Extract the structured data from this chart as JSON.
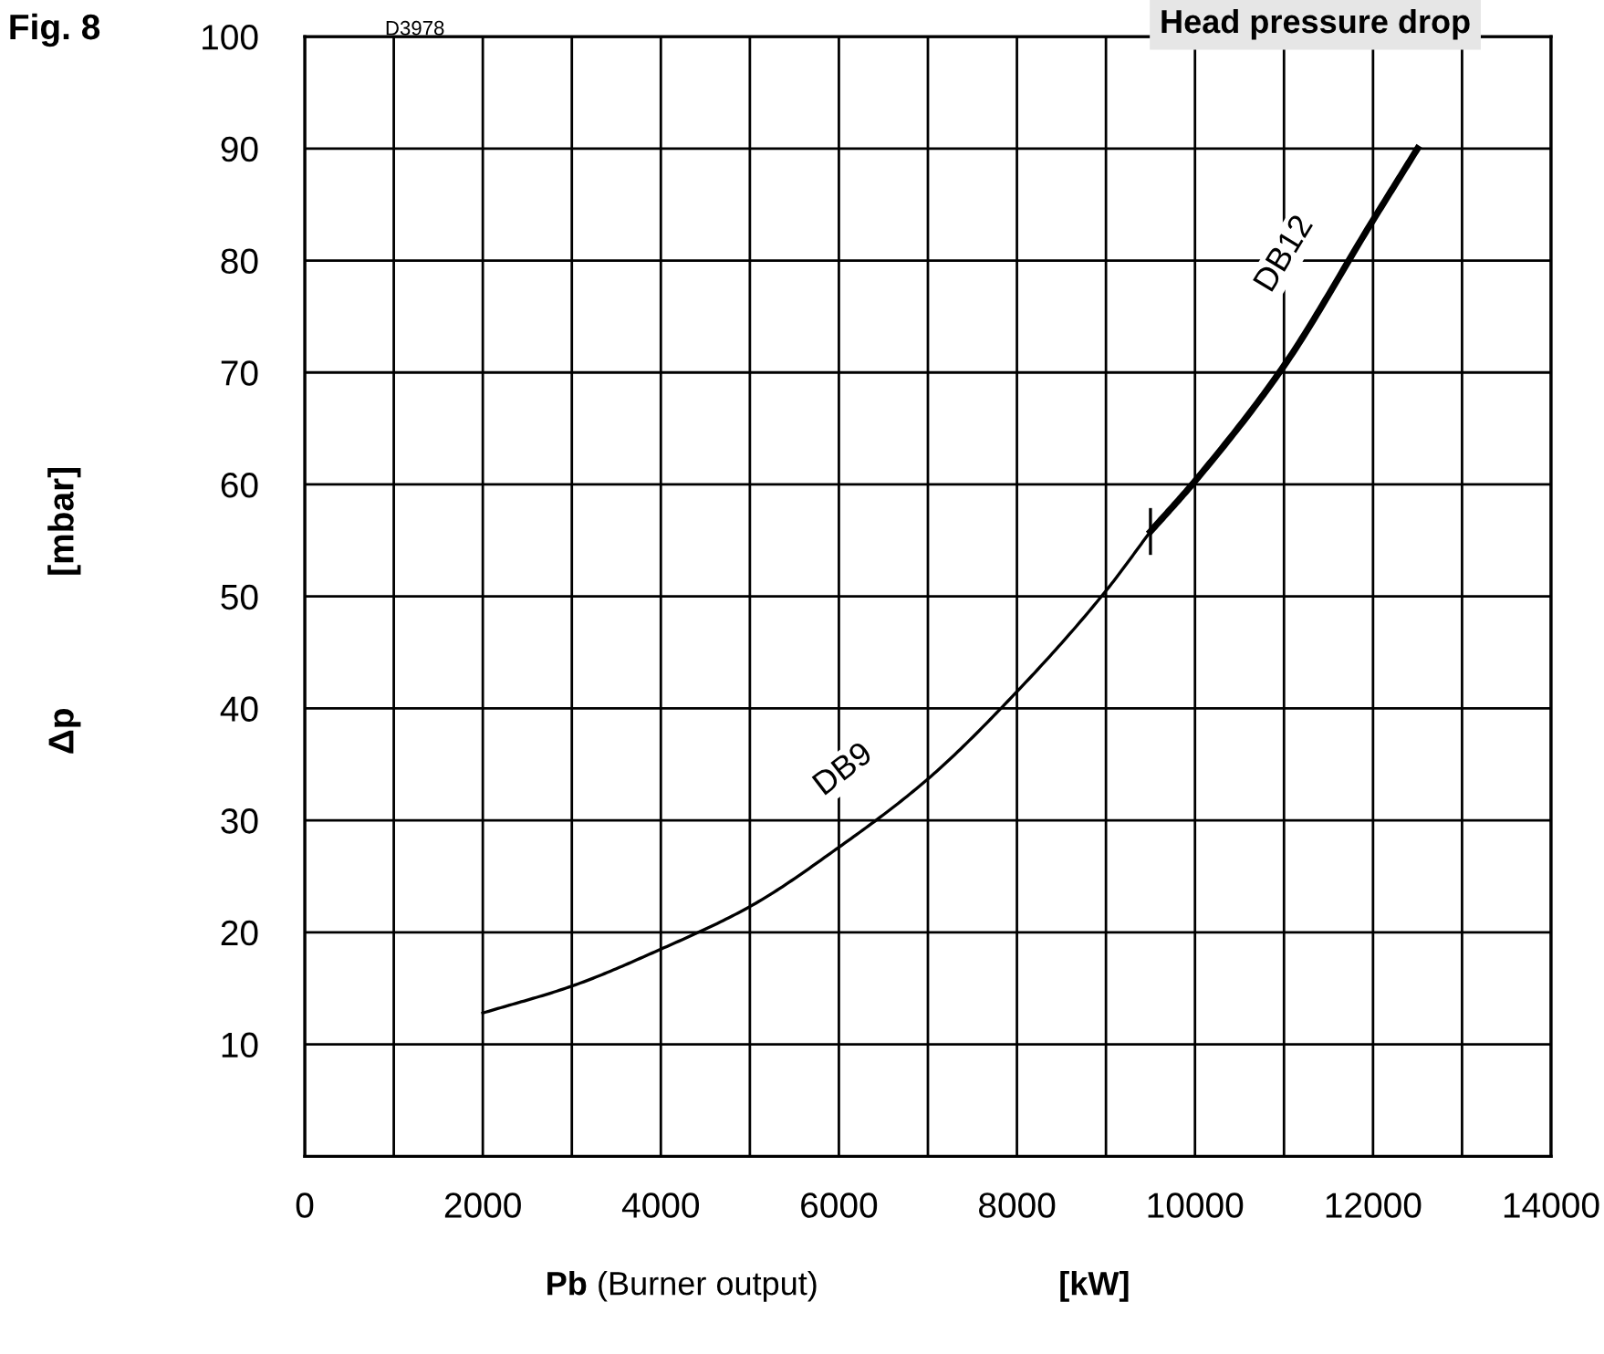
{
  "chart_data": {
    "type": "line",
    "title": "Head pressure drop",
    "xlabel": "Pb (Burner output) [kW]",
    "ylabel": "Δp [mbar]",
    "annotations": [
      "Fig. 8",
      "D3978"
    ],
    "series": [
      {
        "name": "DB9",
        "color": "#000000",
        "x": [
          2000,
          3000,
          4000,
          5000,
          6000,
          7000,
          8000,
          9000,
          9500
        ],
        "values": [
          12.8,
          15.2,
          18.5,
          22.3,
          27.6,
          33.7,
          41.5,
          50.5,
          55.8
        ]
      },
      {
        "name": "DB12",
        "color": "#000000",
        "x": [
          9500,
          10000,
          11000,
          12000,
          12500
        ],
        "values": [
          55.8,
          60.3,
          70.6,
          83.6,
          90
        ]
      }
    ],
    "xlim": [
      0,
      14000
    ],
    "ylim": [
      0,
      100
    ],
    "xticks": [
      0,
      {
        "value": 1000,
        "label": null
      },
      2000,
      {
        "value": 3000,
        "label": null
      },
      4000,
      {
        "value": 5000,
        "label": null
      },
      6000,
      {
        "value": 7000,
        "label": null
      },
      8000,
      {
        "value": 9000,
        "label": null
      },
      10000,
      {
        "value": 11000,
        "label": null
      },
      12000,
      {
        "value": 13000,
        "label": null
      },
      14000
    ],
    "yticks": [
      10,
      20,
      30,
      40,
      50,
      60,
      70,
      80,
      90,
      100
    ],
    "grid": true,
    "legend": false,
    "marker": "none",
    "line_style": "solid"
  }
}
